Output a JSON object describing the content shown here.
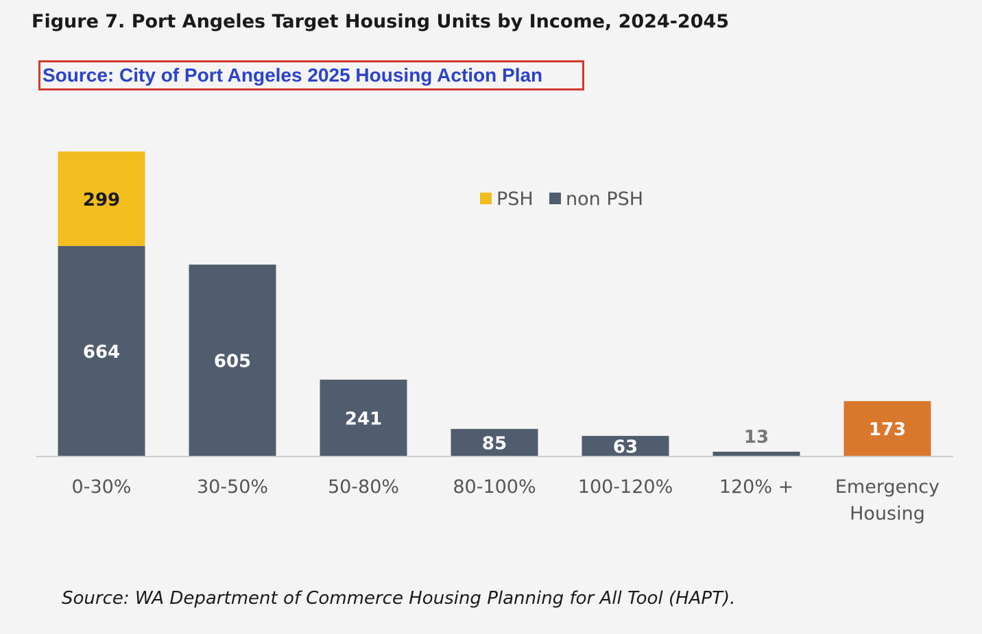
{
  "title": "Figure 7. Port Angeles Target Housing Units by Income, 2024-2045",
  "source_note": "Source: City of Port Angeles 2025 Housing Action Plan",
  "footnote": "Source: WA Department of Commerce Housing Planning for All Tool (HAPT).",
  "colors": {
    "psh": "#f2bd1e",
    "non_psh": "#505d6f",
    "emergency": "#d9782d",
    "axis": "#cccccc",
    "label_light": "#ffffff",
    "label_dark": "#1a1a1a",
    "label_grey": "#777777",
    "tick": "#555555"
  },
  "chart_data": {
    "type": "bar",
    "stacked": true,
    "categories": [
      "0-30%",
      "30-50%",
      "50-80%",
      "80-100%",
      "100-120%",
      "120% +",
      "Emergency Housing"
    ],
    "series": [
      {
        "name": "PSH",
        "values": [
          299,
          0,
          0,
          0,
          0,
          0,
          0
        ]
      },
      {
        "name": "non PSH",
        "values": [
          664,
          605,
          241,
          85,
          63,
          13,
          0
        ]
      },
      {
        "name": "",
        "values": [
          0,
          0,
          0,
          0,
          0,
          0,
          173
        ]
      }
    ],
    "legend": [
      "PSH",
      "non PSH"
    ],
    "legend_position": "top-center",
    "ylim": [
      0,
      963
    ],
    "grid": false,
    "xlabel": "",
    "ylabel": ""
  }
}
